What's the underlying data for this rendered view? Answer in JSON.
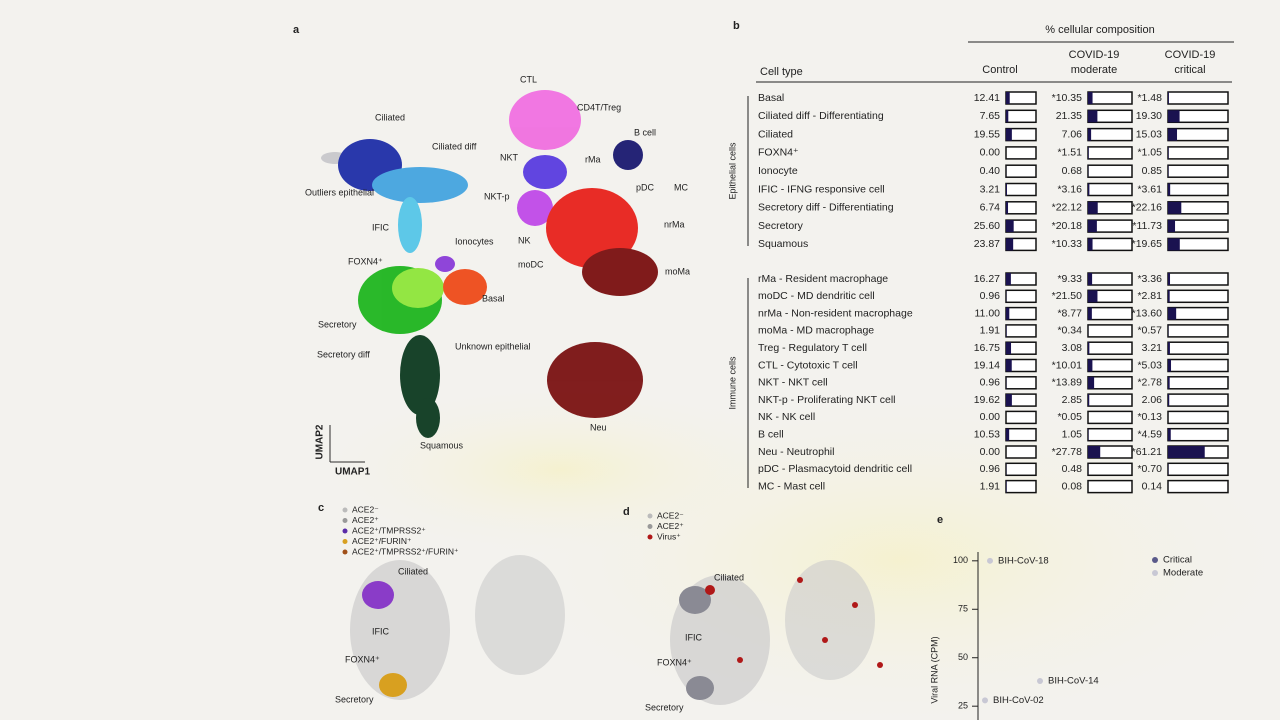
{
  "panel_labels": [
    "a",
    "b",
    "c",
    "d",
    "e"
  ],
  "panel_a": {
    "clusters_left": [
      "Ciliated",
      "Ciliated diff",
      "Outliers epithelial",
      "IFIC",
      "Ionocytes",
      "FOXN4⁺",
      "Basal",
      "Secretory",
      "Unknown epithelial",
      "Secretory diff",
      "Squamous"
    ],
    "clusters_right": [
      "CTL",
      "CD4T/Treg",
      "B cell",
      "NKT",
      "rMa",
      "pDC",
      "MC",
      "NKT-p",
      "nrMa",
      "NK",
      "moDC",
      "moMa",
      "Neu"
    ],
    "x_axis": "UMAP1",
    "y_axis": "UMAP2"
  },
  "table": {
    "super_header": "% cellular composition",
    "columns": [
      "Cell type",
      "Control",
      [
        "COVID-19",
        "moderate"
      ],
      [
        "COVID-19",
        "critical"
      ]
    ],
    "groups": [
      {
        "name": "Epithelial cells",
        "rows": [
          [
            "Basal",
            "12.41",
            "*10.35",
            "*1.48"
          ],
          [
            "Ciliated diff - Differentiating",
            "7.65",
            "21.35",
            "19.30"
          ],
          [
            "Ciliated",
            "19.55",
            "7.06",
            "15.03"
          ],
          [
            "FOXN4⁺",
            "0.00",
            "*1.51",
            "*1.05"
          ],
          [
            "Ionocyte",
            "0.40",
            "0.68",
            "0.85"
          ],
          [
            "IFIC - IFNG responsive cell",
            "3.21",
            "*3.16",
            "*3.61"
          ],
          [
            "Secretory diff - Differentiating",
            "6.74",
            "*22.12",
            "*22.16"
          ],
          [
            "Secretory",
            "25.60",
            "*20.18",
            "*11.73"
          ],
          [
            "Squamous",
            "23.87",
            "*10.33",
            "*19.65"
          ]
        ]
      },
      {
        "name": "Immune cells",
        "rows": [
          [
            "rMa - Resident macrophage",
            "16.27",
            "*9.33",
            "*3.36"
          ],
          [
            "moDC - MD dendritic cell",
            "0.96",
            "*21.50",
            "*2.81"
          ],
          [
            "nrMa - Non-resident macrophage",
            "11.00",
            "*8.77",
            "*13.60"
          ],
          [
            "moMa - MD macrophage",
            "1.91",
            "*0.34",
            "*0.57"
          ],
          [
            "Treg - Regulatory T cell",
            "16.75",
            "3.08",
            "3.21"
          ],
          [
            "CTL - Cytotoxic T cell",
            "19.14",
            "*10.01",
            "*5.03"
          ],
          [
            "NKT - NKT cell",
            "0.96",
            "*13.89",
            "*2.78"
          ],
          [
            "NKT-p - Proliferating NKT cell",
            "19.62",
            "2.85",
            "2.06"
          ],
          [
            "NK - NK cell",
            "0.00",
            "*0.05",
            "*0.13"
          ],
          [
            "B cell",
            "10.53",
            "1.05",
            "*4.59"
          ],
          [
            "Neu - Neutrophil",
            "0.00",
            "*27.78",
            "*61.21"
          ],
          [
            "pDC - Plasmacytoid dendritic cell",
            "0.96",
            "0.48",
            "*0.70"
          ],
          [
            "MC - Mast cell",
            "1.91",
            "0.08",
            "0.14"
          ]
        ]
      }
    ]
  },
  "panel_c": {
    "legend": [
      "ACE2⁻",
      "ACE2⁺",
      "ACE2⁺/TMPRSS2⁺",
      "ACE2⁺/FURIN⁺",
      "ACE2⁺/TMPRSS2⁺/FURIN⁺"
    ],
    "labels": [
      "Ciliated",
      "IFIC",
      "FOXN4⁺",
      "Secretory"
    ]
  },
  "panel_d": {
    "legend": [
      "ACE2⁻",
      "ACE2⁺",
      "Virus⁺"
    ],
    "labels": [
      "Ciliated",
      "IFIC",
      "FOXN4⁺",
      "Secretory"
    ]
  },
  "panel_e": {
    "y_label": "Viral RNA (CPM)",
    "ylim": [
      22,
      103
    ],
    "yticks": [
      25,
      50,
      75,
      100
    ],
    "legend": [
      "Critical",
      "Moderate"
    ],
    "points": [
      {
        "label": "BIH-CoV-18",
        "value": 100
      },
      {
        "label": "BIH-CoV-14",
        "value": 38
      },
      {
        "label": "BIH-CoV-02",
        "value": 28
      }
    ]
  }
}
